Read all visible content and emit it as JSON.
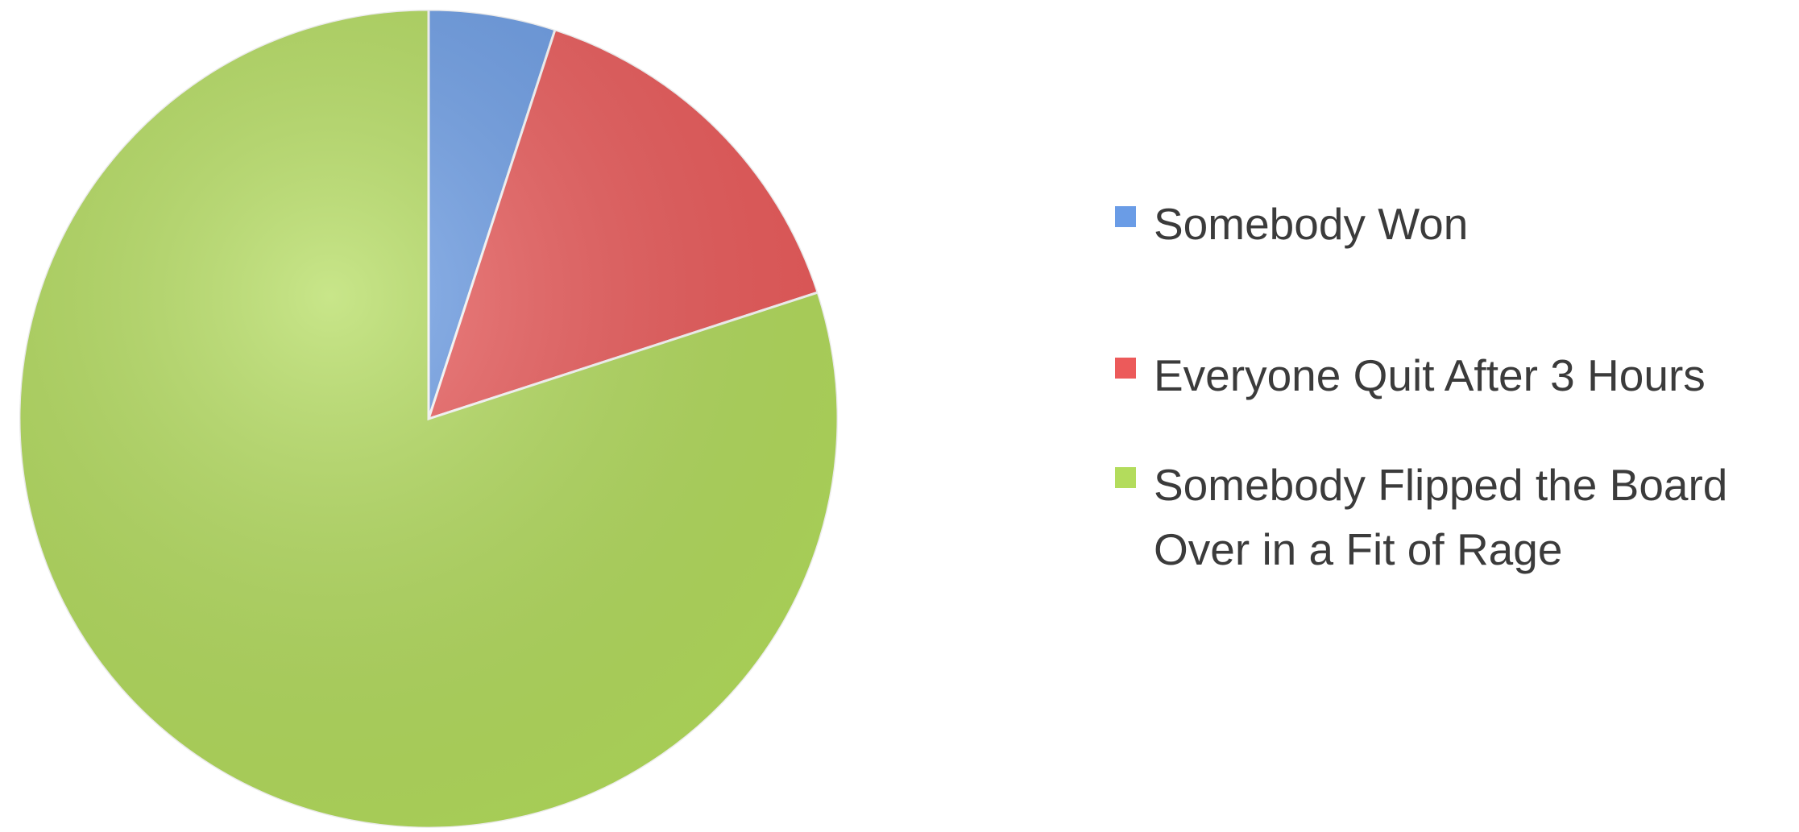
{
  "chart_data": {
    "type": "pie",
    "title": "",
    "slices": [
      {
        "label": "Somebody Won",
        "value": 5,
        "color": "#6a9ce6"
      },
      {
        "label": "Everyone Quit After 3 Hours",
        "value": 15,
        "color": "#ec5a5a"
      },
      {
        "label": "Somebody Flipped the Board Over in a Fit of Rage",
        "value": 80,
        "color": "#b3dc5c"
      }
    ],
    "start_angle_deg": 0,
    "direction": "clockwise",
    "legend_placement": "right"
  },
  "legend": {
    "items": [
      {
        "label": "Somebody Won",
        "color": "#6a9ce6"
      },
      {
        "label": "Everyone Quit After 3 Hours",
        "color": "#ec5a5a"
      },
      {
        "label": "Somebody Flipped the Board Over in a Fit of Rage",
        "color": "#b3dc5c"
      }
    ]
  }
}
